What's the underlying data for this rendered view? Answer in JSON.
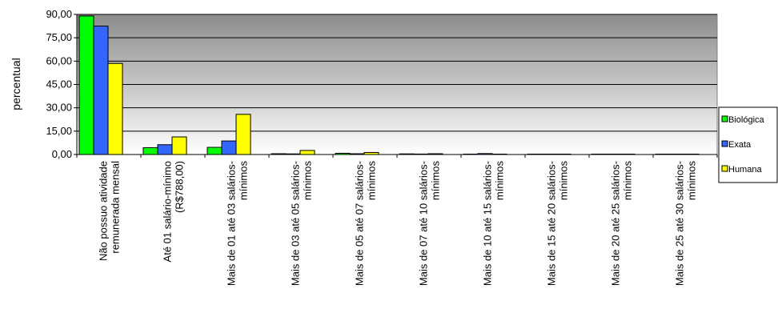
{
  "chart_data": {
    "type": "bar",
    "title": "",
    "xlabel": "",
    "ylabel": "percentual",
    "ylim": [
      0,
      90
    ],
    "yticks": [
      "0,00",
      "15,00",
      "30,00",
      "45,00",
      "60,00",
      "75,00",
      "90,00"
    ],
    "grid": true,
    "legend_position": "right",
    "categories": [
      [
        "Não possuo atividade",
        "remunerada mensal"
      ],
      [
        "Até 01 salário-mínimo",
        "(R$788,00)"
      ],
      [
        "Mais de 01 até 03 salários-",
        "mínimos"
      ],
      [
        "Mais de 03 até 05 salários-",
        "mínimos"
      ],
      [
        "Mais de 05 até 07 salários-",
        "mínimos"
      ],
      [
        "Mais de 07 até 10 salários-",
        "mínimos"
      ],
      [
        "Mais de 10 até 15 salários-",
        "mínimos"
      ],
      [
        "Mais de 15 até 20 salários-",
        "mínimos"
      ],
      [
        "Mais de 20 até 25 salários-",
        "mínimos"
      ],
      [
        "Mais de 25 até 30 salários-",
        "mínimos"
      ]
    ],
    "series": [
      {
        "name": "Biológica",
        "color": "#00ff00",
        "values": [
          89.0,
          4.4,
          4.6,
          0.5,
          0.8,
          0.4,
          0.1,
          0.2,
          0.0,
          0.0
        ]
      },
      {
        "name": "Exata",
        "color": "#3366ff",
        "values": [
          82.5,
          6.3,
          8.7,
          0.4,
          0.5,
          0.3,
          0.6,
          0.1,
          0.0,
          0.0
        ]
      },
      {
        "name": "Humana",
        "color": "#ffff00",
        "values": [
          58.5,
          11.3,
          25.8,
          2.6,
          1.3,
          0.5,
          0.2,
          0.2,
          0.0,
          0.0
        ]
      }
    ]
  }
}
